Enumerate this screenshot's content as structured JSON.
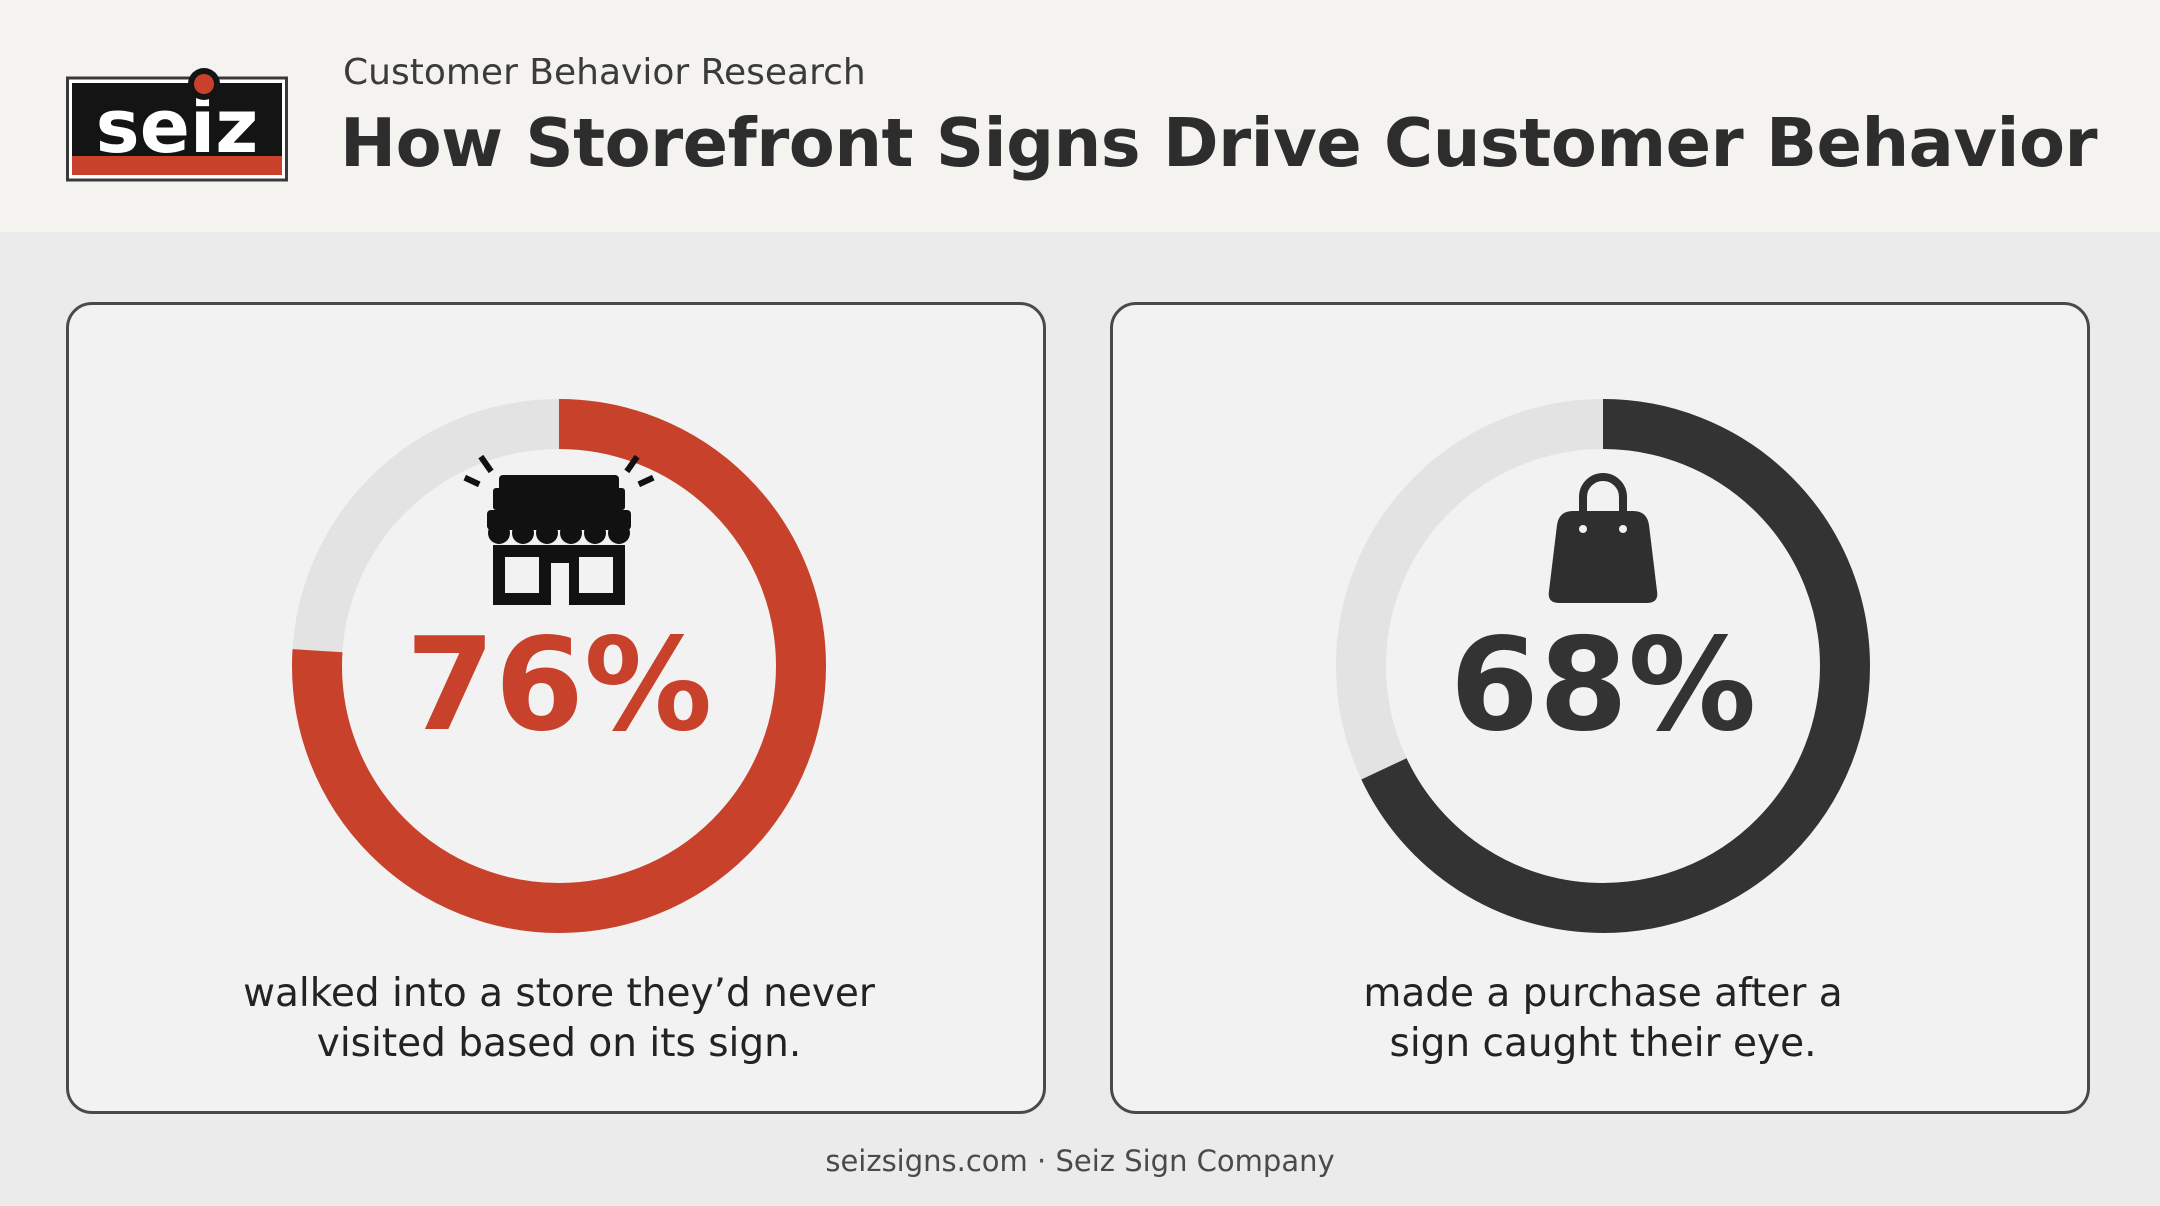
{
  "header": {
    "logo_text": "seiz",
    "subtitle": "Customer Behavior Research",
    "title": "How Storefront Signs Drive Customer Behavior"
  },
  "colors": {
    "red": "#c8412b",
    "dark": "#333333",
    "track": "#e3e3e3"
  },
  "chart_data": [
    {
      "type": "pie",
      "subtype": "donut",
      "value": 76,
      "max": 100,
      "label": "76%",
      "icon": "storefront-icon",
      "color": "#c8412b",
      "description_lines": [
        "walked into a store they’d never",
        "visited based on its sign."
      ]
    },
    {
      "type": "pie",
      "subtype": "donut",
      "value": 68,
      "max": 100,
      "label": "68%",
      "icon": "shopping-bag-icon",
      "color": "#333333",
      "description_lines": [
        "made a purchase after a",
        "sign caught their eye."
      ]
    }
  ],
  "footer": {
    "text": "seizsigns.com · Seiz Sign Company"
  }
}
